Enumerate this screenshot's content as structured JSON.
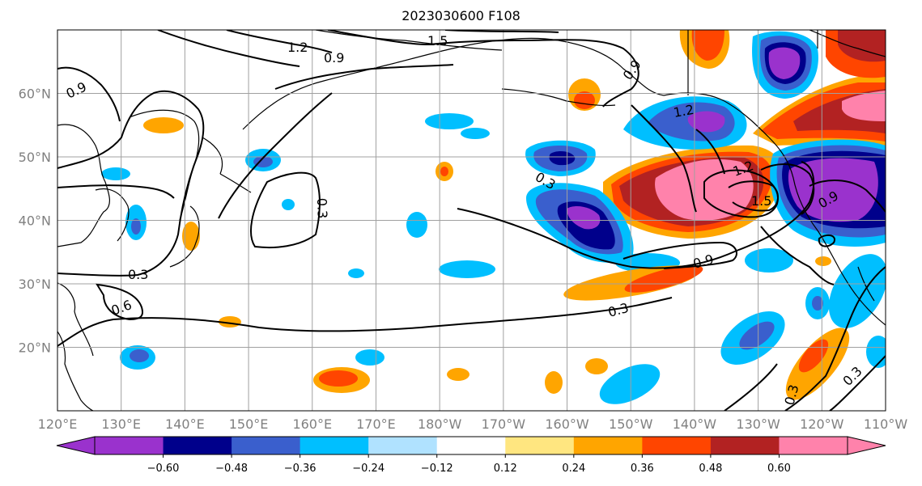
{
  "title": "2023030600 F108",
  "map": {
    "lon_ticks": [
      "120°E",
      "130°E",
      "140°E",
      "150°E",
      "160°E",
      "170°E",
      "180°W",
      "170°W",
      "160°W",
      "150°W",
      "140°W",
      "130°W",
      "120°W",
      "110°W"
    ],
    "lat_ticks": [
      "60°N",
      "50°N",
      "40°N",
      "30°N",
      "20°N"
    ],
    "lon_range": [
      120,
      250
    ],
    "lat_range": [
      10,
      70
    ],
    "gridlines": true,
    "contour_labels": [
      "1.2",
      "1.5",
      "0.9",
      "0.9",
      "0.9",
      "1.2",
      "1.2",
      "1.5",
      "0.9",
      "0.9",
      "0.3",
      "0.3",
      "0.3",
      "0.6",
      "0.3",
      "0.3",
      "0.3"
    ]
  },
  "colorbar": {
    "colors": [
      "#9a32cd",
      "#00008b",
      "#3a5fcd",
      "#00bfff",
      "#b0e2ff",
      "#ffffff",
      "#ffe680",
      "#ffa500",
      "#ff4500",
      "#b22222",
      "#ff82ab"
    ],
    "tick_labels": [
      "−0.60",
      "−0.48",
      "−0.36",
      "−0.24",
      "−0.12",
      "0.12",
      "0.24",
      "0.36",
      "0.48",
      "0.60"
    ],
    "extend": "both"
  }
}
